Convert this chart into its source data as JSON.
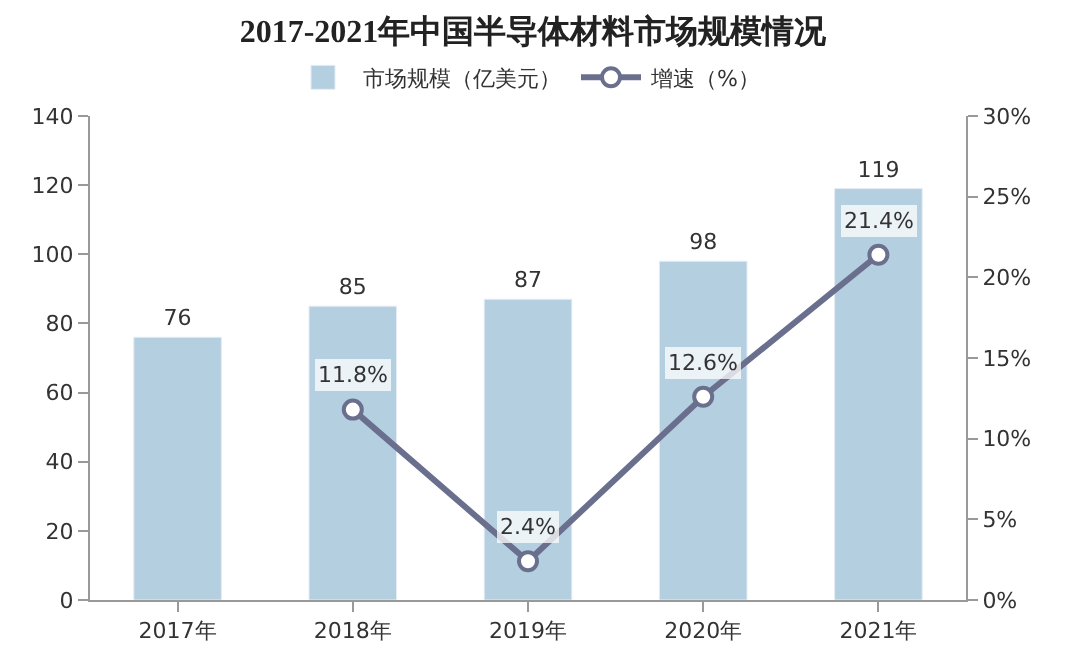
{
  "chart_data": {
    "type": "bar",
    "title": "2017-2021年中国半导体材料市场规模情况",
    "categories": [
      "2017年",
      "2018年",
      "2019年",
      "2020年",
      "2021年"
    ],
    "series": [
      {
        "name": "市场规模（亿美元）",
        "color": "#b4cfe0",
        "values": [
          76,
          85,
          87,
          98,
          119
        ],
        "value_labels": [
          "76",
          "85",
          "87",
          "98",
          "119"
        ]
      },
      {
        "name": "增速（%）",
        "type": "line",
        "axis": "y2",
        "color": "#6b6f8e",
        "values": [
          null,
          11.8,
          2.4,
          12.6,
          21.4
        ],
        "value_labels": [
          null,
          "11.8%",
          "2.4%",
          "12.6%",
          "21.4%"
        ],
        "marker": "circle",
        "line_style": "solid"
      }
    ],
    "ylim": [
      0,
      140
    ],
    "yticks": [
      0,
      20,
      40,
      60,
      80,
      100,
      120,
      140
    ],
    "y2lim": [
      0,
      30
    ],
    "y2ticks": [
      {
        "value": 0,
        "label": "0%"
      },
      {
        "value": 5,
        "label": "5%"
      },
      {
        "value": 10,
        "label": "10%"
      },
      {
        "value": 15,
        "label": "15%"
      },
      {
        "value": 20,
        "label": "20%"
      },
      {
        "value": 25,
        "label": "25%"
      },
      {
        "value": 30,
        "label": "30%"
      }
    ],
    "grid": false,
    "legend": "top"
  }
}
